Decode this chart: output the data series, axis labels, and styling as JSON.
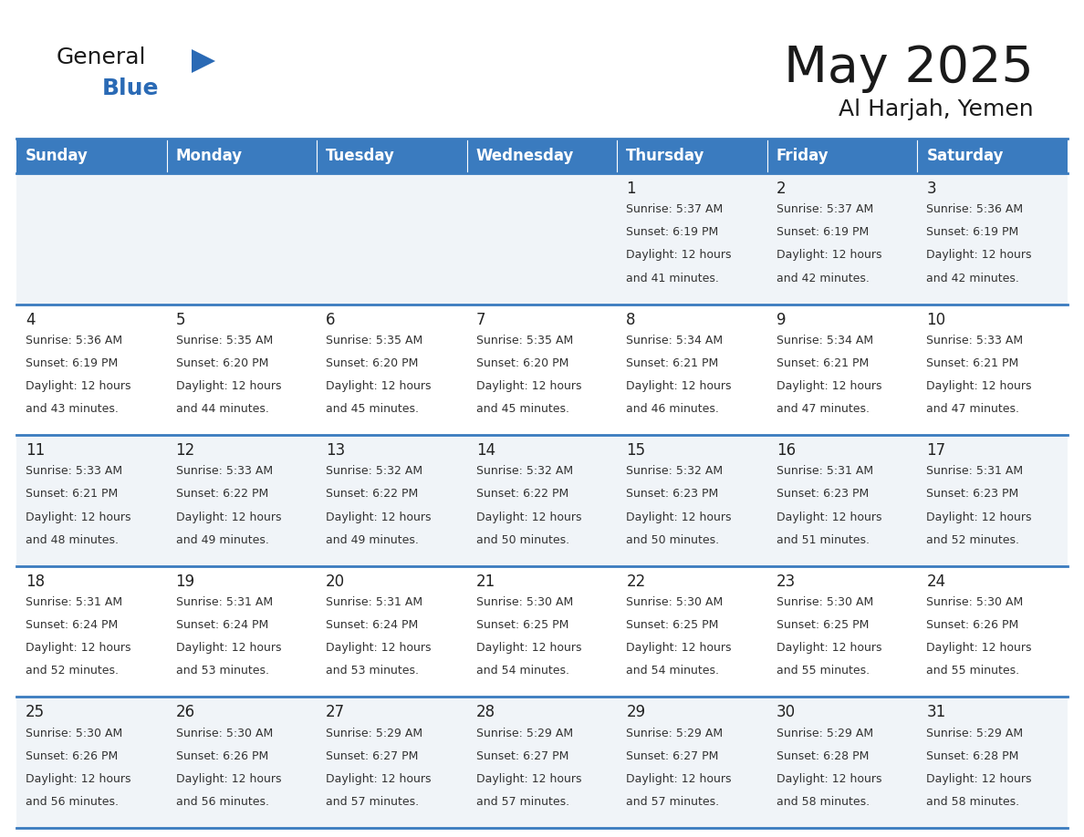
{
  "title": "May 2025",
  "subtitle": "Al Harjah, Yemen",
  "header_bg": "#3a7bbf",
  "header_text": "#ffffff",
  "days_of_week": [
    "Sunday",
    "Monday",
    "Tuesday",
    "Wednesday",
    "Thursday",
    "Friday",
    "Saturday"
  ],
  "row_bg_even": "#f0f4f8",
  "row_bg_odd": "#ffffff",
  "day_number_color": "#222222",
  "info_color": "#333333",
  "line_color": "#3a7bbf",
  "logo_general_color": "#1a1a1a",
  "logo_blue_color": "#2a6ab5",
  "logo_triangle_color": "#2a6ab5",
  "title_color": "#1a1a1a",
  "calendar": [
    [
      {
        "day": "",
        "sunrise": "",
        "sunset": "",
        "daylight": ""
      },
      {
        "day": "",
        "sunrise": "",
        "sunset": "",
        "daylight": ""
      },
      {
        "day": "",
        "sunrise": "",
        "sunset": "",
        "daylight": ""
      },
      {
        "day": "",
        "sunrise": "",
        "sunset": "",
        "daylight": ""
      },
      {
        "day": "1",
        "sunrise": "5:37 AM",
        "sunset": "6:19 PM",
        "daylight": "12 hours and 41 minutes."
      },
      {
        "day": "2",
        "sunrise": "5:37 AM",
        "sunset": "6:19 PM",
        "daylight": "12 hours and 42 minutes."
      },
      {
        "day": "3",
        "sunrise": "5:36 AM",
        "sunset": "6:19 PM",
        "daylight": "12 hours and 42 minutes."
      }
    ],
    [
      {
        "day": "4",
        "sunrise": "5:36 AM",
        "sunset": "6:19 PM",
        "daylight": "12 hours and 43 minutes."
      },
      {
        "day": "5",
        "sunrise": "5:35 AM",
        "sunset": "6:20 PM",
        "daylight": "12 hours and 44 minutes."
      },
      {
        "day": "6",
        "sunrise": "5:35 AM",
        "sunset": "6:20 PM",
        "daylight": "12 hours and 45 minutes."
      },
      {
        "day": "7",
        "sunrise": "5:35 AM",
        "sunset": "6:20 PM",
        "daylight": "12 hours and 45 minutes."
      },
      {
        "day": "8",
        "sunrise": "5:34 AM",
        "sunset": "6:21 PM",
        "daylight": "12 hours and 46 minutes."
      },
      {
        "day": "9",
        "sunrise": "5:34 AM",
        "sunset": "6:21 PM",
        "daylight": "12 hours and 47 minutes."
      },
      {
        "day": "10",
        "sunrise": "5:33 AM",
        "sunset": "6:21 PM",
        "daylight": "12 hours and 47 minutes."
      }
    ],
    [
      {
        "day": "11",
        "sunrise": "5:33 AM",
        "sunset": "6:21 PM",
        "daylight": "12 hours and 48 minutes."
      },
      {
        "day": "12",
        "sunrise": "5:33 AM",
        "sunset": "6:22 PM",
        "daylight": "12 hours and 49 minutes."
      },
      {
        "day": "13",
        "sunrise": "5:32 AM",
        "sunset": "6:22 PM",
        "daylight": "12 hours and 49 minutes."
      },
      {
        "day": "14",
        "sunrise": "5:32 AM",
        "sunset": "6:22 PM",
        "daylight": "12 hours and 50 minutes."
      },
      {
        "day": "15",
        "sunrise": "5:32 AM",
        "sunset": "6:23 PM",
        "daylight": "12 hours and 50 minutes."
      },
      {
        "day": "16",
        "sunrise": "5:31 AM",
        "sunset": "6:23 PM",
        "daylight": "12 hours and 51 minutes."
      },
      {
        "day": "17",
        "sunrise": "5:31 AM",
        "sunset": "6:23 PM",
        "daylight": "12 hours and 52 minutes."
      }
    ],
    [
      {
        "day": "18",
        "sunrise": "5:31 AM",
        "sunset": "6:24 PM",
        "daylight": "12 hours and 52 minutes."
      },
      {
        "day": "19",
        "sunrise": "5:31 AM",
        "sunset": "6:24 PM",
        "daylight": "12 hours and 53 minutes."
      },
      {
        "day": "20",
        "sunrise": "5:31 AM",
        "sunset": "6:24 PM",
        "daylight": "12 hours and 53 minutes."
      },
      {
        "day": "21",
        "sunrise": "5:30 AM",
        "sunset": "6:25 PM",
        "daylight": "12 hours and 54 minutes."
      },
      {
        "day": "22",
        "sunrise": "5:30 AM",
        "sunset": "6:25 PM",
        "daylight": "12 hours and 54 minutes."
      },
      {
        "day": "23",
        "sunrise": "5:30 AM",
        "sunset": "6:25 PM",
        "daylight": "12 hours and 55 minutes."
      },
      {
        "day": "24",
        "sunrise": "5:30 AM",
        "sunset": "6:26 PM",
        "daylight": "12 hours and 55 minutes."
      }
    ],
    [
      {
        "day": "25",
        "sunrise": "5:30 AM",
        "sunset": "6:26 PM",
        "daylight": "12 hours and 56 minutes."
      },
      {
        "day": "26",
        "sunrise": "5:30 AM",
        "sunset": "6:26 PM",
        "daylight": "12 hours and 56 minutes."
      },
      {
        "day": "27",
        "sunrise": "5:29 AM",
        "sunset": "6:27 PM",
        "daylight": "12 hours and 57 minutes."
      },
      {
        "day": "28",
        "sunrise": "5:29 AM",
        "sunset": "6:27 PM",
        "daylight": "12 hours and 57 minutes."
      },
      {
        "day": "29",
        "sunrise": "5:29 AM",
        "sunset": "6:27 PM",
        "daylight": "12 hours and 57 minutes."
      },
      {
        "day": "30",
        "sunrise": "5:29 AM",
        "sunset": "6:28 PM",
        "daylight": "12 hours and 58 minutes."
      },
      {
        "day": "31",
        "sunrise": "5:29 AM",
        "sunset": "6:28 PM",
        "daylight": "12 hours and 58 minutes."
      }
    ]
  ]
}
